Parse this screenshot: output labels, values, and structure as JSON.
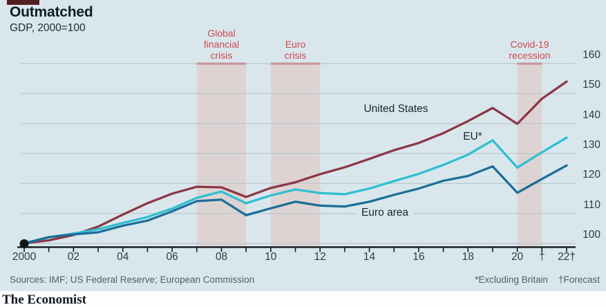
{
  "header": {
    "title": "Outmatched",
    "subtitle": "GDP, 2000=100"
  },
  "footer": {
    "sources": "Sources: IMF; US Federal Reserve; European Commission",
    "footnote_britain": "*Excluding Britain",
    "footnote_forecast": "†Forecast",
    "brand": "The Economist"
  },
  "colors": {
    "background": "#d9e7ed",
    "grid": "#b7c6cc",
    "axis": "#10181d",
    "band_fill": "#ded3d3",
    "band_top": "#d4484d",
    "band_label": "#cd4a4d",
    "tab": "#551e22"
  },
  "chart_data": {
    "type": "line",
    "title": "Outmatched",
    "subtitle": "GDP, 2000=100",
    "xlabel": "",
    "ylabel": "GDP index (2000=100)",
    "ylim": [
      100,
      160
    ],
    "grid": true,
    "legend": "inline-labels",
    "x": [
      2000,
      2001,
      2002,
      2003,
      2004,
      2005,
      2006,
      2007,
      2008,
      2009,
      2010,
      2011,
      2012,
      2013,
      2014,
      2015,
      2016,
      2017,
      2018,
      2019,
      2020,
      2021,
      2022
    ],
    "series": [
      {
        "name": "United States",
        "color": "#8c3746",
        "values": [
          100,
          101.0,
          102.8,
          105.6,
          109.6,
          113.4,
          116.6,
          118.9,
          118.7,
          115.5,
          118.5,
          120.4,
          123.1,
          125.4,
          128.2,
          131.1,
          133.5,
          136.8,
          140.8,
          145.2,
          139.9,
          148.3,
          154.0
        ]
      },
      {
        "name": "EU*",
        "color": "#2fbfd1",
        "values": [
          100,
          102.0,
          103.3,
          104.7,
          106.8,
          108.8,
          111.6,
          115.2,
          117.3,
          113.4,
          116.0,
          118.0,
          116.8,
          116.4,
          118.3,
          120.8,
          123.2,
          126.2,
          129.6,
          134.4,
          125.3,
          130.4,
          135.3
        ]
      },
      {
        "name": "Euro area",
        "color": "#1b6e96",
        "values": [
          100,
          102.1,
          103.0,
          103.7,
          105.9,
          107.6,
          110.7,
          114.1,
          114.6,
          109.4,
          111.7,
          113.9,
          112.6,
          112.3,
          113.9,
          116.2,
          118.3,
          120.9,
          122.5,
          125.7,
          116.9,
          121.5,
          126.0
        ]
      }
    ],
    "bands": [
      {
        "label_lines": [
          "Global",
          "financial",
          "crisis"
        ],
        "from": 2007,
        "to": 2009
      },
      {
        "label_lines": [
          "Euro",
          "crisis"
        ],
        "from": 2010,
        "to": 2012
      },
      {
        "label_lines": [
          "Covid-19",
          "recession"
        ],
        "from": 2020,
        "to": 2021
      }
    ],
    "yticks": [
      100,
      110,
      120,
      130,
      140,
      150,
      160
    ],
    "xticks": [
      {
        "year": 2000,
        "label": "2000"
      },
      {
        "year": 2002,
        "label": "02"
      },
      {
        "year": 2004,
        "label": "04"
      },
      {
        "year": 2006,
        "label": "06"
      },
      {
        "year": 2008,
        "label": "08"
      },
      {
        "year": 2010,
        "label": "10"
      },
      {
        "year": 2012,
        "label": "12"
      },
      {
        "year": 2014,
        "label": "14"
      },
      {
        "year": 2016,
        "label": "16"
      },
      {
        "year": 2018,
        "label": "18"
      },
      {
        "year": 2020,
        "label": "20"
      },
      {
        "year": 2021,
        "label": "†"
      },
      {
        "year": 2022,
        "label": "22†"
      }
    ]
  }
}
